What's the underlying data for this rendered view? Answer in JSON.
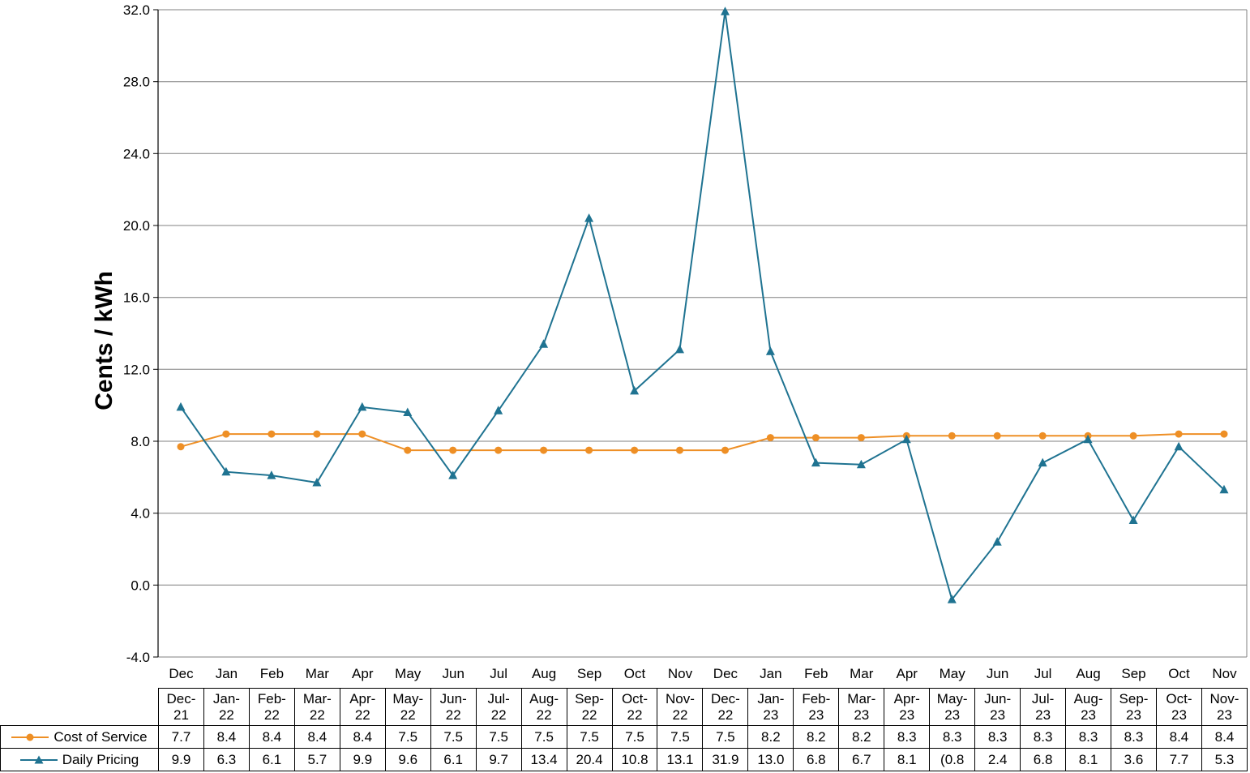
{
  "chart_data": {
    "type": "line",
    "title": "",
    "xlabel": "",
    "ylabel": "Cents / kWh",
    "ylim": [
      -4.0,
      32.0
    ],
    "ytick_step": 4.0,
    "ytick_labels": [
      "32.0",
      "28.0",
      "24.0",
      "20.0",
      "16.0",
      "12.0",
      "8.0",
      "4.0",
      "0.0",
      "-4.0"
    ],
    "grid": true,
    "legend_position": "table-left",
    "x_tick_labels": [
      "Dec",
      "Jan",
      "Feb",
      "Mar",
      "Apr",
      "May",
      "Jun",
      "Jul",
      "Aug",
      "Sep",
      "Oct",
      "Nov",
      "Dec",
      "Jan",
      "Feb",
      "Mar",
      "Apr",
      "May",
      "Jun",
      "Jul",
      "Aug",
      "Sep",
      "Oct",
      "Nov"
    ],
    "categories": [
      "Dec-21",
      "Jan-22",
      "Feb-22",
      "Mar-22",
      "Apr-22",
      "May-22",
      "Jun-22",
      "Jul-22",
      "Aug-22",
      "Sep-22",
      "Oct-22",
      "Nov-22",
      "Dec-22",
      "Jan-23",
      "Feb-23",
      "Mar-23",
      "Apr-23",
      "May-23",
      "Jun-23",
      "Jul-23",
      "Aug-23",
      "Sep-23",
      "Oct-23",
      "Nov-23"
    ],
    "series": [
      {
        "name": "Cost of Service",
        "color": "#EE8F25",
        "marker": "circle",
        "values": [
          7.7,
          8.4,
          8.4,
          8.4,
          8.4,
          7.5,
          7.5,
          7.5,
          7.5,
          7.5,
          7.5,
          7.5,
          7.5,
          8.2,
          8.2,
          8.2,
          8.3,
          8.3,
          8.3,
          8.3,
          8.3,
          8.3,
          8.4,
          8.4
        ],
        "display": [
          "7.7",
          "8.4",
          "8.4",
          "8.4",
          "8.4",
          "7.5",
          "7.5",
          "7.5",
          "7.5",
          "7.5",
          "7.5",
          "7.5",
          "7.5",
          "8.2",
          "8.2",
          "8.2",
          "8.3",
          "8.3",
          "8.3",
          "8.3",
          "8.3",
          "8.3",
          "8.4",
          "8.4"
        ]
      },
      {
        "name": "Daily Pricing",
        "color": "#1F7391",
        "marker": "triangle",
        "values": [
          9.9,
          6.3,
          6.1,
          5.7,
          9.9,
          9.6,
          6.1,
          9.7,
          13.4,
          20.4,
          10.8,
          13.1,
          31.9,
          13.0,
          6.8,
          6.7,
          8.1,
          -0.8,
          2.4,
          6.8,
          8.1,
          3.6,
          7.7,
          5.3
        ],
        "display": [
          "9.9",
          "6.3",
          "6.1",
          "5.7",
          "9.9",
          "9.6",
          "6.1",
          "9.7",
          "13.4",
          "20.4",
          "10.8",
          "13.1",
          "31.9",
          "13.0",
          "6.8",
          "6.7",
          "8.1",
          "(0.8",
          "2.4",
          "6.8",
          "8.1",
          "3.6",
          "7.7",
          "5.3"
        ]
      }
    ]
  },
  "colors": {
    "gridline": "#808080",
    "axis": "#000000",
    "table_border": "#000000",
    "background": "#FFFFFF"
  }
}
